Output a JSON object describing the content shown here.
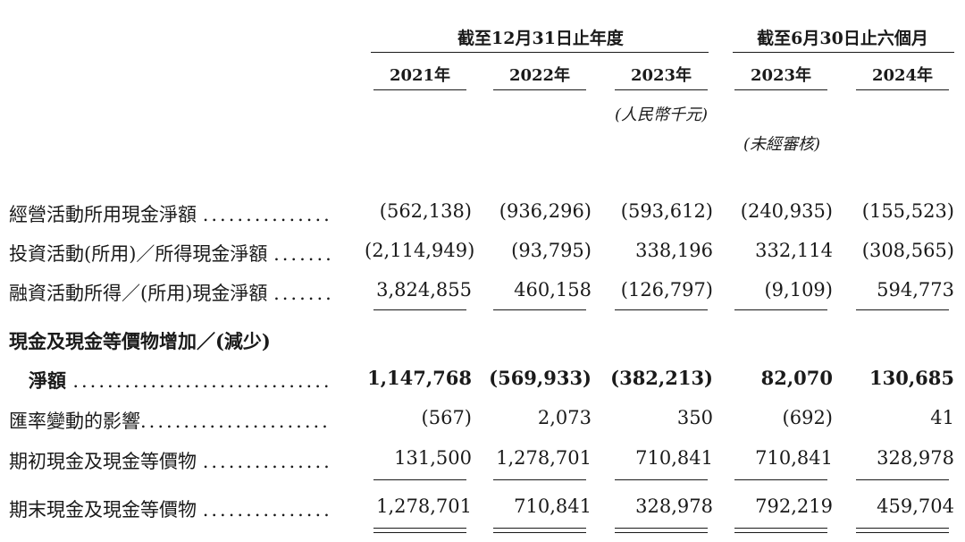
{
  "header": {
    "group1": "截至12月31日止年度",
    "group2": "截至6月30日止六個月",
    "years": [
      "2021年",
      "2022年",
      "2023年",
      "2023年",
      "2024年"
    ],
    "unit_note": "(人民幣千元)",
    "unaudited_note": "(未經審核)"
  },
  "rows": [
    {
      "label": "經營活動所用現金淨額",
      "leader": "...............",
      "values": [
        "(562,138)",
        "(936,296)",
        "(593,612)",
        "(240,935)",
        "(155,523)"
      ]
    },
    {
      "label": "投資活動(所用)／所得現金淨額",
      "leader": ".......",
      "values": [
        "(2,114,949)",
        "(93,795)",
        "338,196",
        "332,114",
        "(308,565)"
      ]
    },
    {
      "label": "融資活動所得／(所用)現金淨額",
      "leader": ".......",
      "values": [
        "3,824,855",
        "460,158",
        "(126,797)",
        "(9,109)",
        "594,773"
      ]
    }
  ],
  "net_change": {
    "label_line1": "現金及現金等價物增加／(減少)",
    "label_line2": "淨額",
    "leader": "..............................",
    "values": [
      "1,147,768",
      "(569,933)",
      "(382,213)",
      "82,070",
      "130,685"
    ]
  },
  "rows2": [
    {
      "label": "匯率變動的影響",
      "leader": "......................",
      "values": [
        "(567)",
        "2,073",
        "350",
        "(692)",
        "41"
      ]
    },
    {
      "label": "期初現金及現金等價物",
      "leader": "...............",
      "values": [
        "131,500",
        "1,278,701",
        "710,841",
        "710,841",
        "328,978"
      ]
    },
    {
      "label": "期末現金及現金等價物",
      "leader": "...............",
      "values": [
        "1,278,701",
        "710,841",
        "328,978",
        "792,219",
        "459,704"
      ]
    }
  ]
}
